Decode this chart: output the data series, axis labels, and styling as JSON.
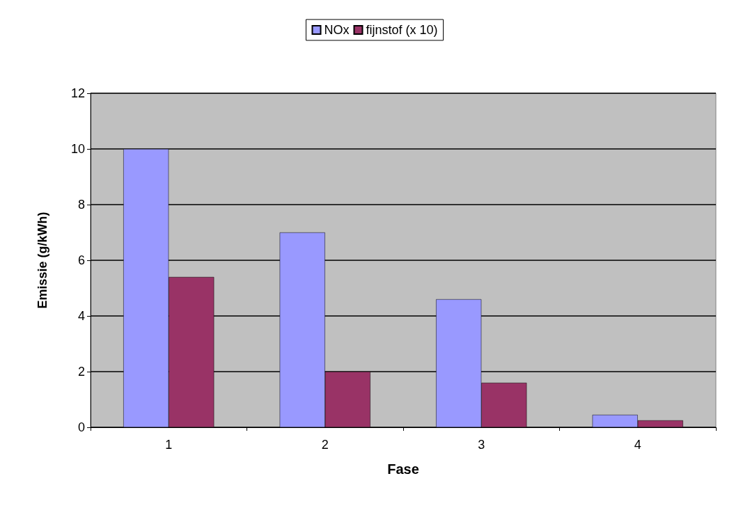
{
  "chart_data": {
    "type": "bar",
    "xlabel": "Fase",
    "ylabel": "Emissie (g/kWh)",
    "categories": [
      "1",
      "2",
      "3",
      "4"
    ],
    "series": [
      {
        "name": "NOx",
        "color": "#9999ff",
        "values": [
          10,
          7,
          4.6,
          0.45
        ]
      },
      {
        "name": "fijnstof (x 10)",
        "color": "#993366",
        "values": [
          5.4,
          2,
          1.6,
          0.25
        ]
      }
    ],
    "ylim": [
      0,
      12
    ],
    "yticks": [
      0,
      2,
      4,
      6,
      8,
      10,
      12
    ],
    "grid": "y",
    "legend": "top"
  }
}
